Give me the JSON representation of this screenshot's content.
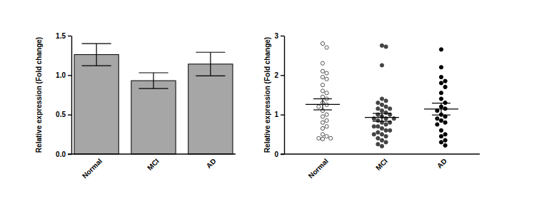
{
  "chart_data": [
    {
      "type": "bar",
      "categories": [
        "Normal",
        "MCI",
        "AD"
      ],
      "values": [
        1.26,
        0.93,
        1.14
      ],
      "errors": [
        0.14,
        0.1,
        0.15
      ],
      "color": "#a6a6a6",
      "y_label": "Relative expression (Fold change)",
      "ylim": [
        0,
        1.5
      ],
      "yticks": [
        {
          "value": 0,
          "label": "0.0"
        },
        {
          "value": 0.5,
          "label": "0.5"
        },
        {
          "value": 1,
          "label": "1.0"
        },
        {
          "value": 1.5,
          "label": "1.5"
        }
      ]
    },
    {
      "type": "strip",
      "categories": [
        "Normal",
        "MCI",
        "AD"
      ],
      "points": [
        [
          2.8,
          2.7,
          2.3,
          2.1,
          2.05,
          1.95,
          1.9,
          1.75,
          1.6,
          1.55,
          1.45,
          1.4,
          1.3,
          1.25,
          1.2,
          1.1,
          1.0,
          0.95,
          0.85,
          0.8,
          0.7,
          0.65,
          0.5,
          0.45,
          0.4,
          0.4,
          0.38
        ],
        [
          2.75,
          2.72,
          2.25,
          1.4,
          1.35,
          1.3,
          1.25,
          1.2,
          1.15,
          1.15,
          1.1,
          1.05,
          1.0,
          1.0,
          0.95,
          0.9,
          0.9,
          0.9,
          0.85,
          0.8,
          0.8,
          0.75,
          0.7,
          0.7,
          0.65,
          0.6,
          0.6,
          0.55,
          0.5,
          0.5,
          0.45,
          0.4,
          0.35,
          0.3,
          0.25,
          0.2
        ],
        [
          2.65,
          2.2,
          1.95,
          1.85,
          1.8,
          1.7,
          1.55,
          1.4,
          1.3,
          1.2,
          1.15,
          1.1,
          1.0,
          0.95,
          0.9,
          0.85,
          0.8,
          0.75,
          0.6,
          0.5,
          0.45,
          0.35,
          0.3,
          0.22
        ]
      ],
      "values": [
        1.26,
        0.93,
        1.14
      ],
      "errors": [
        0.14,
        0.1,
        0.15
      ],
      "marker": "circle",
      "colors": [
        "#ffffff",
        "#444444",
        "#000000"
      ],
      "y_label": "Relative expression (Fold change)",
      "ylim": [
        0,
        3
      ],
      "yticks": [
        0,
        1,
        2,
        3
      ]
    }
  ]
}
